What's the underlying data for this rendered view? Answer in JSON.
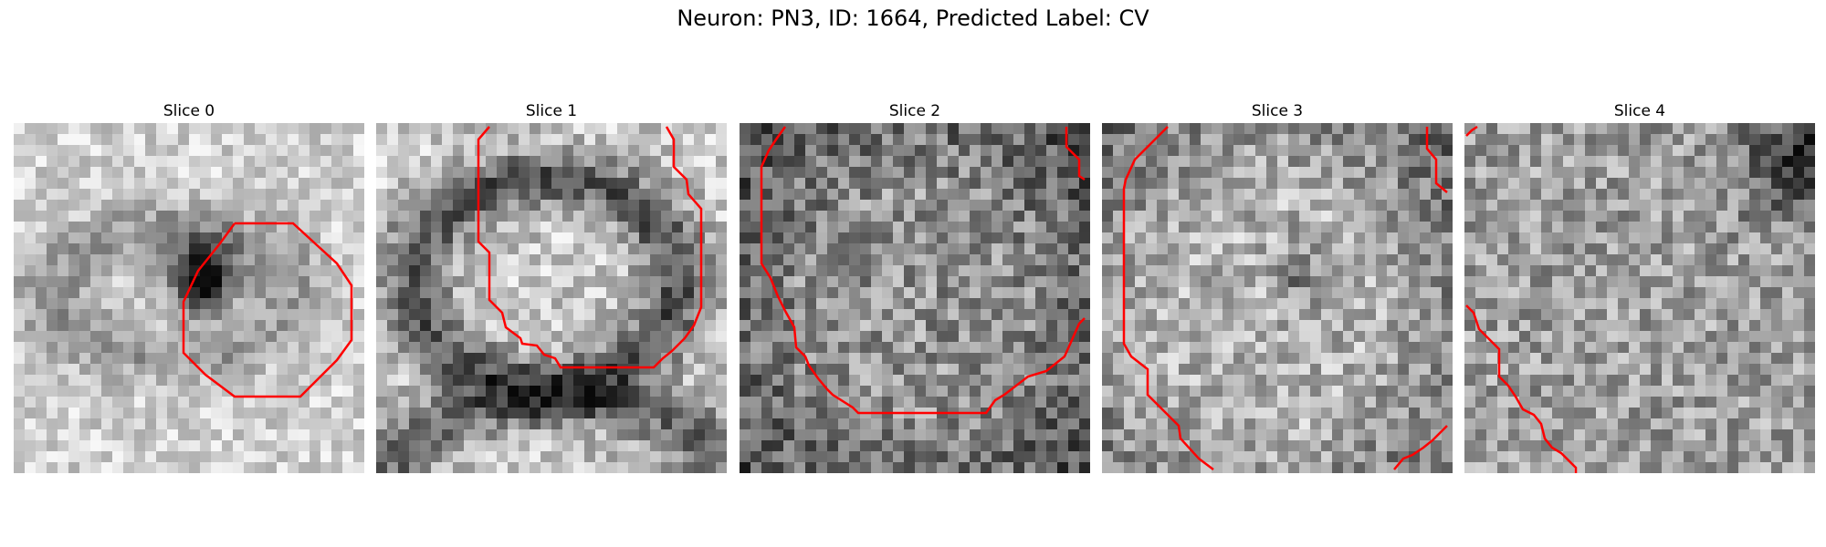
{
  "figure": {
    "title": "Neuron: PN3, ID: 1664, Predicted Label: CV"
  },
  "panels": [
    {
      "title": "Slice 0"
    },
    {
      "title": "Slice 1"
    },
    {
      "title": "Slice 2"
    },
    {
      "title": "Slice 3"
    },
    {
      "title": "Slice 4"
    }
  ],
  "colors": {
    "contour": "#ff0000"
  }
}
